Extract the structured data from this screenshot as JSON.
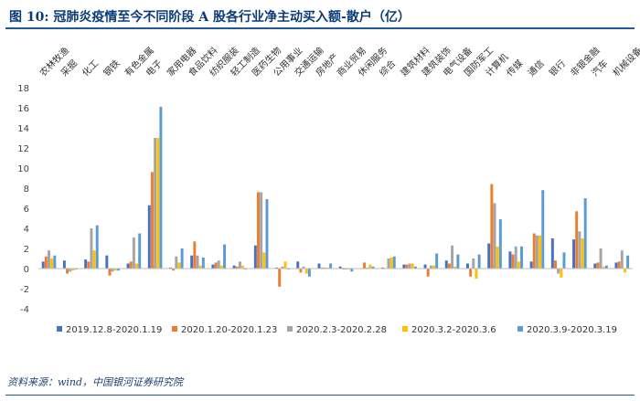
{
  "figure": {
    "title": "图 10:  冠肺炎疫情至今不同阶段 A 股各行业净主动买入额-散户（亿）",
    "source": "资料来源：wind，中国银河证券研究院"
  },
  "chart_data": {
    "type": "bar",
    "categories": [
      "农林牧渔",
      "采掘",
      "化工",
      "钢铁",
      "有色金属",
      "电子",
      "家用电器",
      "食品饮料",
      "纺织服装",
      "轻工制造",
      "医药生物",
      "公用事业",
      "交通运输",
      "房地产",
      "商业贸易",
      "休闲服务",
      "综合",
      "建筑材料",
      "建筑装饰",
      "电气设备",
      "国防军工",
      "计算机",
      "传媒",
      "通信",
      "银行",
      "非银金融",
      "汽车",
      "机械设备"
    ],
    "series": [
      {
        "name": "2019.12.8-2020.1.19",
        "color": "#4472c4",
        "values": [
          0.7,
          0.8,
          0.9,
          1.3,
          0.5,
          6.3,
          0.1,
          1.3,
          0.4,
          0.3,
          2.3,
          0.1,
          0.7,
          0.5,
          0.2,
          0.0,
          0.1,
          0.4,
          0.4,
          0.8,
          0.5,
          2.5,
          1.7,
          0.7,
          3.0,
          2.9,
          0.5,
          0.6
        ]
      },
      {
        "name": "2020.1.20-2020.1.23",
        "color": "#ed7d31",
        "values": [
          1.2,
          -0.5,
          0.7,
          -0.7,
          0.7,
          9.6,
          -0.2,
          2.7,
          0.6,
          0.2,
          7.6,
          -1.8,
          -0.4,
          0.1,
          -0.1,
          0.6,
          0.0,
          0.4,
          -0.8,
          0.5,
          -0.8,
          8.4,
          1.4,
          3.5,
          0.8,
          5.7,
          0.6,
          0.7
        ]
      },
      {
        "name": "2020.2.3-2020.2.28",
        "color": "#a5a5a5",
        "values": [
          1.8,
          -0.3,
          4.0,
          -0.3,
          3.1,
          13.0,
          1.2,
          1.3,
          0.8,
          0.7,
          7.6,
          0.2,
          0.2,
          0.1,
          -0.1,
          0.1,
          1.0,
          0.5,
          0.3,
          2.3,
          1.0,
          6.5,
          2.2,
          3.3,
          -0.5,
          3.7,
          2.0,
          1.8
        ]
      },
      {
        "name": "2020.3.2-2020.3.6",
        "color": "#ffc000",
        "values": [
          1.0,
          -0.2,
          1.8,
          -0.2,
          0.5,
          13.0,
          0.6,
          0.3,
          0.3,
          0.3,
          1.6,
          0.7,
          -0.5,
          0.1,
          -0.1,
          0.4,
          1.1,
          0.5,
          0.3,
          0.2,
          -1.0,
          2.2,
          0.7,
          3.3,
          -0.9,
          3.0,
          0.2,
          -0.4
        ]
      },
      {
        "name": "2020.3.9-2020.3.19",
        "color": "#5b9bd5",
        "values": [
          1.3,
          -0.1,
          4.3,
          -0.2,
          3.5,
          16.1,
          2.0,
          1.1,
          2.4,
          -0.1,
          6.9,
          -0.1,
          -0.8,
          0.5,
          -0.3,
          0.2,
          1.2,
          0.2,
          1.5,
          1.4,
          1.4,
          4.9,
          2.2,
          7.8,
          1.6,
          7.0,
          0.3,
          1.3
        ]
      }
    ],
    "ylim": [
      -4,
      18
    ],
    "yticks": [
      -4,
      -2,
      0,
      2,
      4,
      6,
      8,
      10,
      12,
      14,
      16,
      18
    ],
    "legend": "bottom",
    "grid": false
  }
}
